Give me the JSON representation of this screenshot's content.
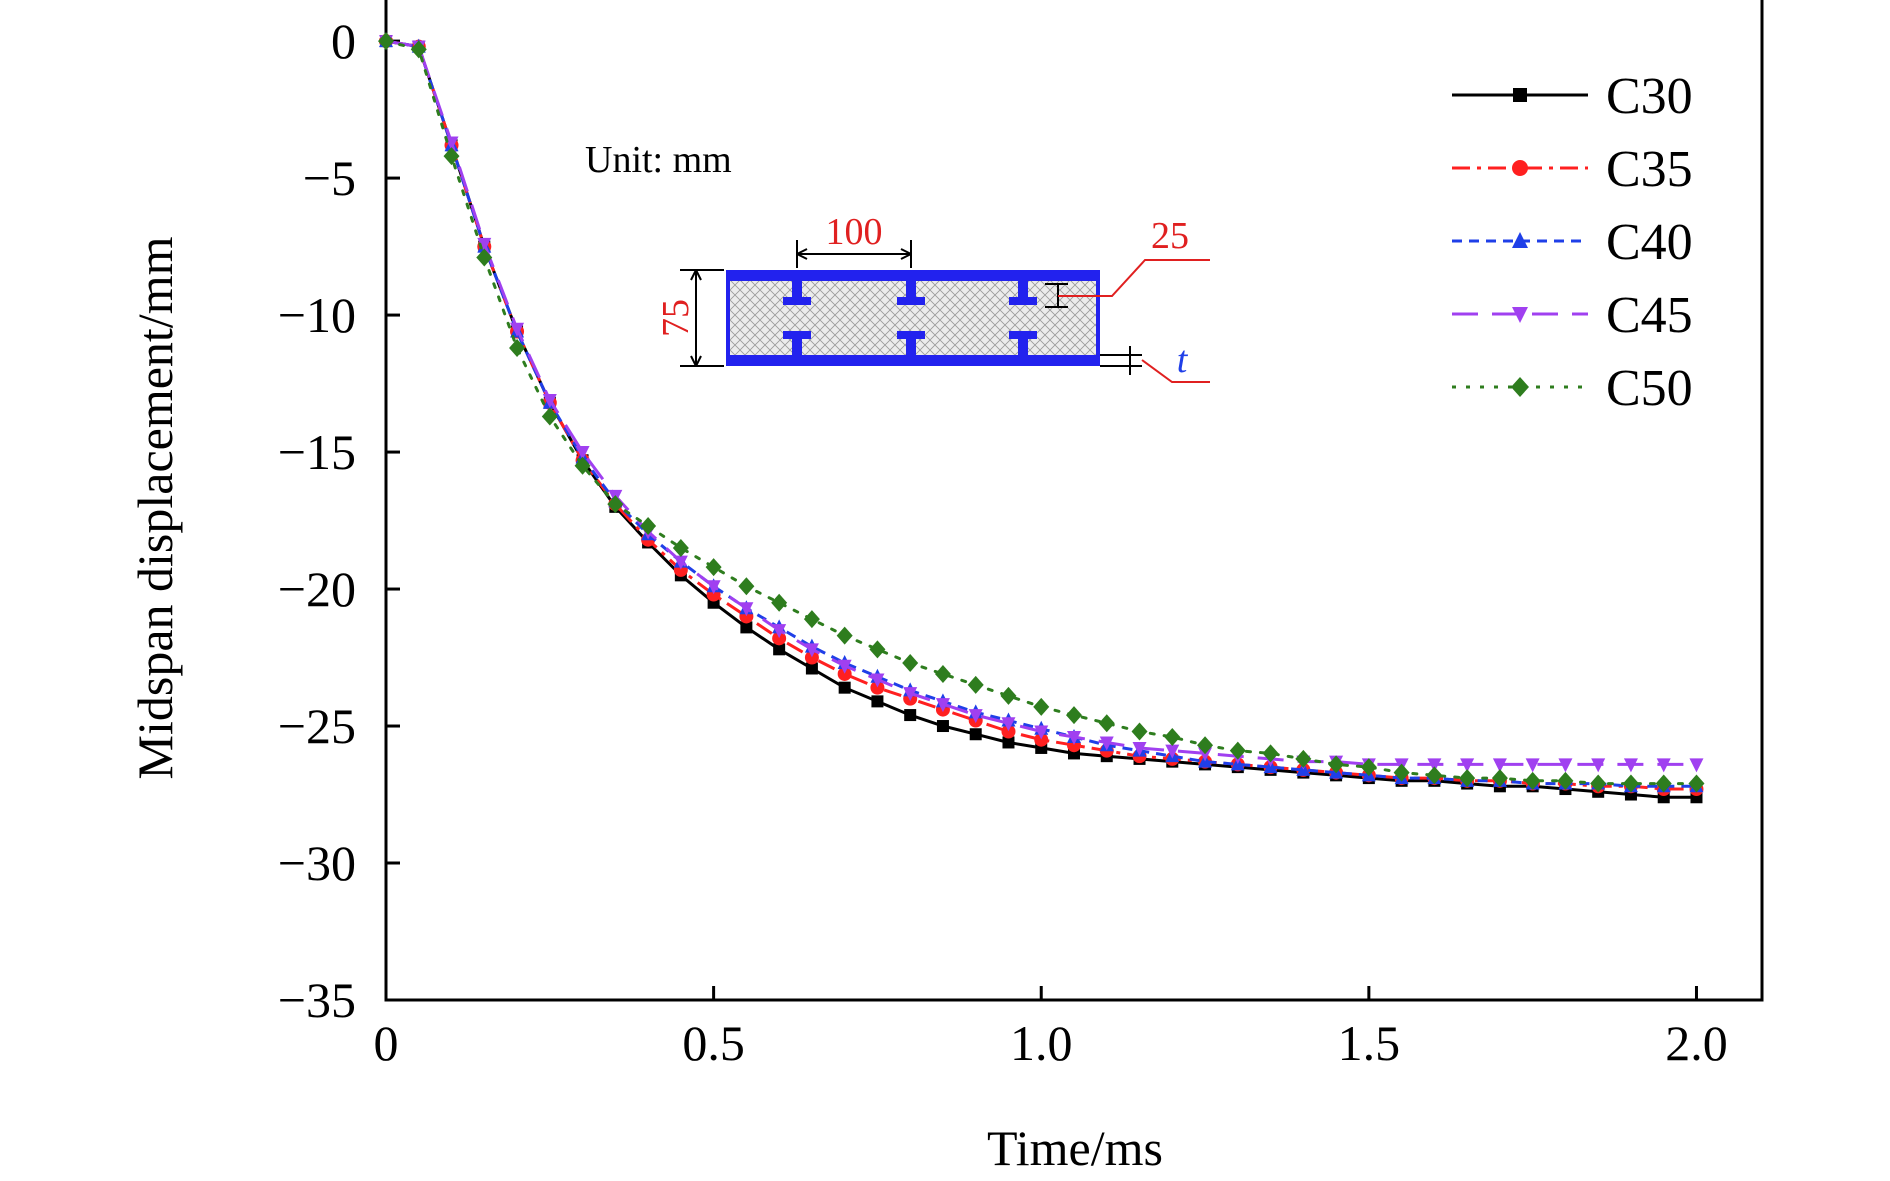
{
  "chart_data": {
    "type": "line",
    "xlabel": "Time/ms",
    "ylabel": "Midspan displacement/mm",
    "xlim": [
      0,
      2.1
    ],
    "ylim": [
      -35,
      1.5
    ],
    "x_ticks": [
      0,
      0.5,
      1.0,
      1.5,
      2.0
    ],
    "x_tick_labels": [
      "0",
      "0.5",
      "1.0",
      "1.5",
      "2.0"
    ],
    "y_ticks": [
      0,
      -5,
      -10,
      -15,
      -20,
      -25,
      -30,
      -35
    ],
    "y_tick_labels": [
      "0",
      "−5",
      "−10",
      "−15",
      "−20",
      "−25",
      "−30",
      "−35"
    ],
    "grid": false,
    "legend_position": "top-right",
    "x": [
      0,
      0.05,
      0.1,
      0.15,
      0.2,
      0.25,
      0.3,
      0.35,
      0.4,
      0.45,
      0.5,
      0.55,
      0.6,
      0.65,
      0.7,
      0.75,
      0.8,
      0.85,
      0.9,
      0.95,
      1.0,
      1.05,
      1.1,
      1.15,
      1.2,
      1.25,
      1.3,
      1.35,
      1.4,
      1.45,
      1.5,
      1.55,
      1.6,
      1.65,
      1.7,
      1.75,
      1.8,
      1.85,
      1.9,
      1.95,
      2.0
    ],
    "series": [
      {
        "name": "C30",
        "color": "#000000",
        "marker": "square",
        "dash": "solid",
        "values": [
          0,
          -0.2,
          -3.8,
          -7.5,
          -10.6,
          -13.2,
          -15.3,
          -17.0,
          -18.3,
          -19.5,
          -20.5,
          -21.4,
          -22.2,
          -22.9,
          -23.6,
          -24.1,
          -24.6,
          -25.0,
          -25.3,
          -25.6,
          -25.8,
          -26.0,
          -26.1,
          -26.2,
          -26.3,
          -26.4,
          -26.5,
          -26.6,
          -26.7,
          -26.8,
          -26.9,
          -27.0,
          -27.0,
          -27.1,
          -27.2,
          -27.2,
          -27.3,
          -27.4,
          -27.5,
          -27.6,
          -27.6
        ]
      },
      {
        "name": "C35",
        "color": "#ff2020",
        "marker": "circle",
        "dash": "dashdot",
        "values": [
          0,
          -0.2,
          -3.8,
          -7.5,
          -10.6,
          -13.2,
          -15.3,
          -16.9,
          -18.2,
          -19.3,
          -20.2,
          -21.0,
          -21.8,
          -22.5,
          -23.1,
          -23.6,
          -24.0,
          -24.4,
          -24.8,
          -25.2,
          -25.5,
          -25.7,
          -25.9,
          -26.1,
          -26.2,
          -26.3,
          -26.4,
          -26.5,
          -26.6,
          -26.7,
          -26.8,
          -26.9,
          -26.9,
          -27.0,
          -27.0,
          -27.1,
          -27.1,
          -27.2,
          -27.2,
          -27.3,
          -27.3
        ]
      },
      {
        "name": "C40",
        "color": "#1f3fe8",
        "marker": "triangle-up",
        "dash": "dashed",
        "values": [
          0,
          -0.2,
          -3.8,
          -7.5,
          -10.6,
          -13.2,
          -15.2,
          -16.8,
          -18.0,
          -19.0,
          -19.9,
          -20.7,
          -21.4,
          -22.1,
          -22.7,
          -23.2,
          -23.7,
          -24.1,
          -24.5,
          -24.8,
          -25.1,
          -25.4,
          -25.7,
          -25.9,
          -26.1,
          -26.3,
          -26.4,
          -26.5,
          -26.6,
          -26.7,
          -26.8,
          -26.9,
          -26.9,
          -27.0,
          -27.0,
          -27.1,
          -27.1,
          -27.1,
          -27.2,
          -27.2,
          -27.2
        ]
      },
      {
        "name": "C45",
        "color": "#a040f0",
        "marker": "triangle-down",
        "dash": "longdash",
        "values": [
          0,
          -0.2,
          -3.7,
          -7.4,
          -10.5,
          -13.1,
          -15.0,
          -16.6,
          -17.9,
          -19.0,
          -19.9,
          -20.7,
          -21.5,
          -22.2,
          -22.8,
          -23.3,
          -23.8,
          -24.2,
          -24.6,
          -24.9,
          -25.2,
          -25.4,
          -25.6,
          -25.8,
          -25.9,
          -26.0,
          -26.1,
          -26.2,
          -26.3,
          -26.3,
          -26.4,
          -26.4,
          -26.4,
          -26.4,
          -26.4,
          -26.4,
          -26.4,
          -26.4,
          -26.4,
          -26.4,
          -26.4
        ]
      },
      {
        "name": "C50",
        "color": "#2e7d1e",
        "marker": "diamond",
        "dash": "dotted",
        "values": [
          0,
          -0.3,
          -4.2,
          -7.9,
          -11.2,
          -13.7,
          -15.5,
          -16.9,
          -17.7,
          -18.5,
          -19.2,
          -19.9,
          -20.5,
          -21.1,
          -21.7,
          -22.2,
          -22.7,
          -23.1,
          -23.5,
          -23.9,
          -24.3,
          -24.6,
          -24.9,
          -25.2,
          -25.4,
          -25.7,
          -25.9,
          -26.0,
          -26.2,
          -26.4,
          -26.5,
          -26.7,
          -26.8,
          -26.9,
          -26.9,
          -27.0,
          -27.0,
          -27.1,
          -27.1,
          -27.1,
          -27.1
        ]
      }
    ],
    "inset": {
      "unit_label": "Unit: mm",
      "width_label": "100",
      "height_label": "75",
      "flange_label": "25",
      "thickness_label": "t",
      "steel_color": "#2222ee",
      "dim_color": "#e02020"
    }
  }
}
